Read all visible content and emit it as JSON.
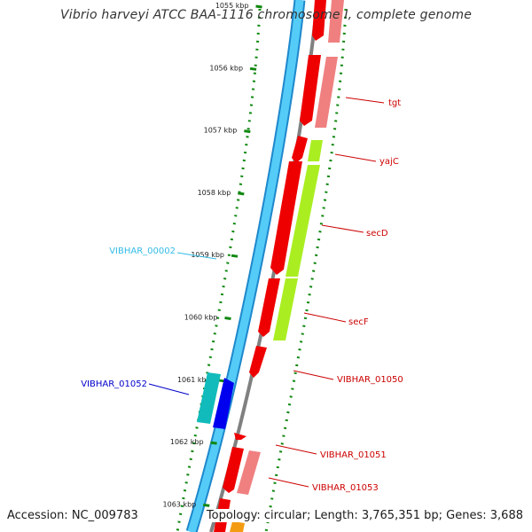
{
  "title": "Vibrio harveyi ATCC BAA-1116 chromosome I, complete genome",
  "scale": {
    "unit": "kbp",
    "ticks": [
      {
        "kbp": 1055,
        "label": "1055 kbp"
      },
      {
        "kbp": 1056,
        "label": "1056 kbp"
      },
      {
        "kbp": 1057,
        "label": "1057 kbp"
      },
      {
        "kbp": 1058,
        "label": "1058 kbp"
      },
      {
        "kbp": 1059,
        "label": "1059 kbp"
      },
      {
        "kbp": 1060,
        "label": "1060 kbp"
      },
      {
        "kbp": 1061,
        "label": "1061 kbp"
      },
      {
        "kbp": 1062,
        "label": "1062 kbp"
      },
      {
        "kbp": 1063,
        "label": "1063 kbp"
      }
    ]
  },
  "features": {
    "left": [
      {
        "label": "VIBHAR_00002",
        "color": "#33bbe6"
      },
      {
        "label": "VIBHAR_01052",
        "color": "#0000cc"
      }
    ],
    "right": [
      {
        "label": "tgt",
        "color": "#cc0000"
      },
      {
        "label": "yajC",
        "color": "#cc0000"
      },
      {
        "label": "secD",
        "color": "#cc0000"
      },
      {
        "label": "secF",
        "color": "#cc0000"
      },
      {
        "label": "VIBHAR_01050",
        "color": "#cc0000"
      },
      {
        "label": "VIBHAR_01051",
        "color": "#cc0000"
      },
      {
        "label": "VIBHAR_01053",
        "color": "#cc0000"
      }
    ]
  },
  "colors": {
    "backbone": "#4dc8f5",
    "backbone_edge": "#1e88cc",
    "inner_line": "#808080",
    "cds": "#ee0000",
    "cds_light": "#f08080",
    "gene_green": "#aaee22",
    "teal": "#11bbbb",
    "blue": "#0000ee",
    "orange": "#f39c12",
    "tick_green": "#118811"
  },
  "footer": {
    "accession": "Accession: NC_009783",
    "summary": "Topology: circular; Length: 3,765,351 bp; Genes: 3,688"
  }
}
